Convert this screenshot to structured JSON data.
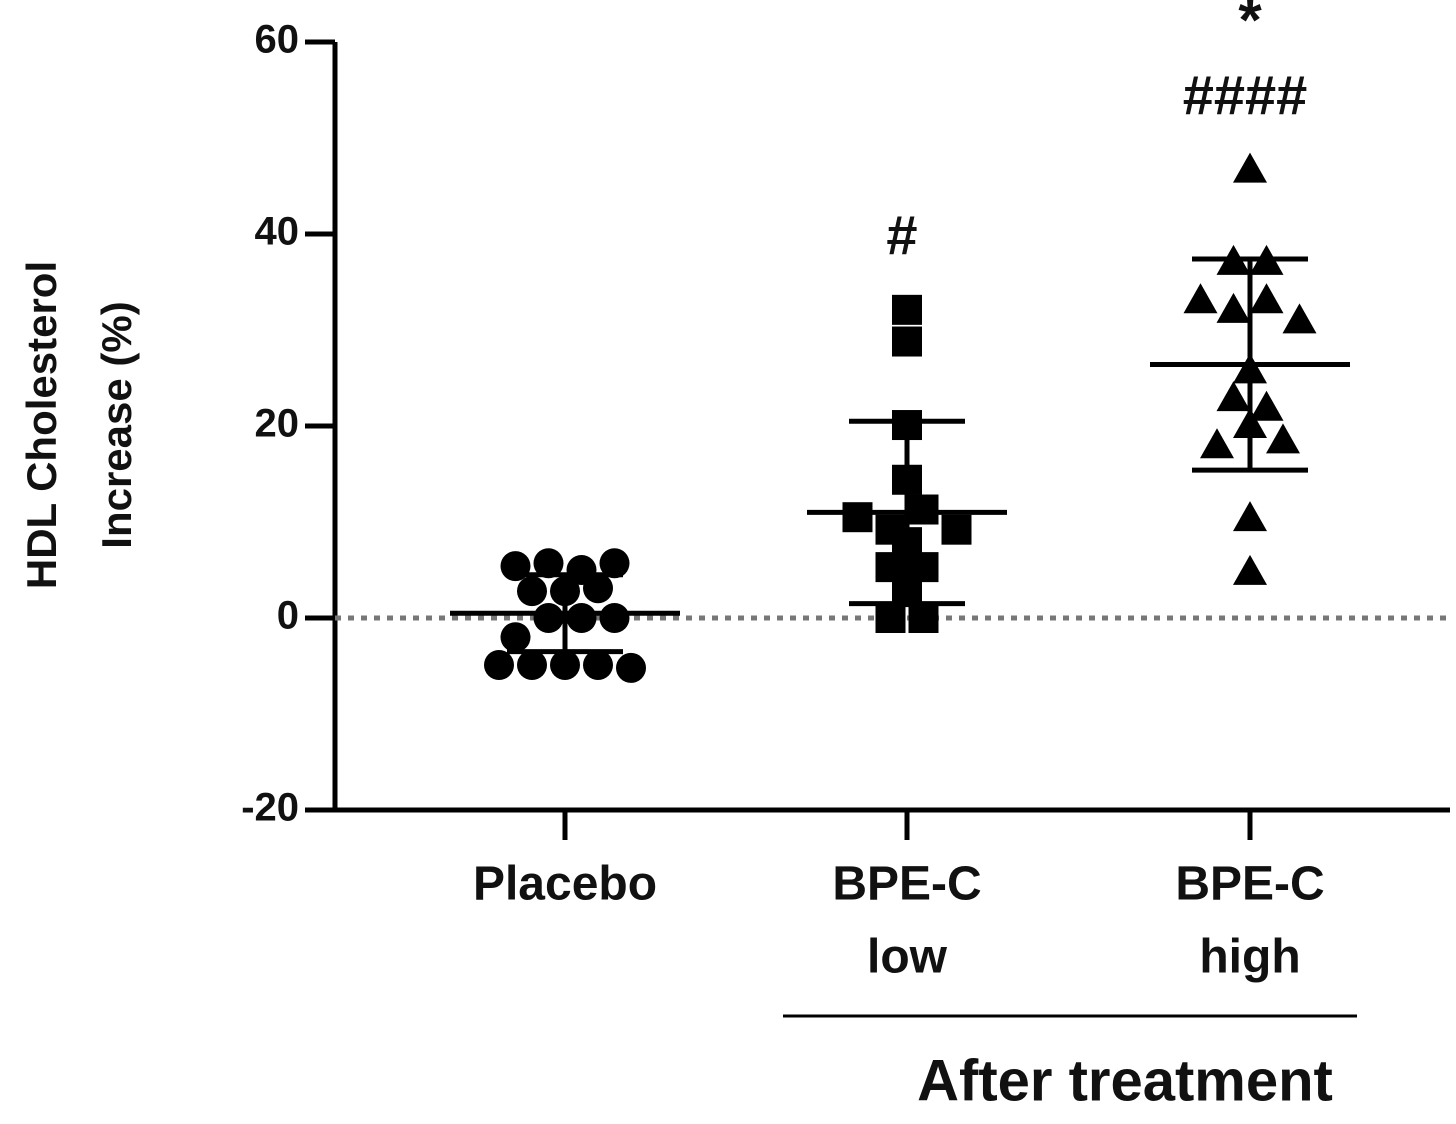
{
  "chart_data": {
    "type": "dotplot",
    "ylabel": [
      "HDL Cholesterol",
      "Increase (%)"
    ],
    "xlabel": "After treatment",
    "ylim": [
      -20,
      60
    ],
    "yticks": [
      -20,
      0,
      20,
      40,
      60
    ],
    "reference_line": 0,
    "series": [
      {
        "name": [
          "Placebo"
        ],
        "color": "#000000",
        "marker": "circle",
        "values": [
          5.4,
          2.8,
          2.8,
          5.7,
          5.0,
          5.7,
          3.1,
          -2.0,
          0,
          0,
          0,
          -4.9,
          -4.9,
          -4.9,
          -4.9,
          -5.2
        ],
        "mean": 0.5,
        "sd": 4
      },
      {
        "name": [
          "BPE-C",
          "low"
        ],
        "color": "#000000",
        "marker": "square",
        "values": [
          32.1,
          28.8,
          20.1,
          14.4,
          10.5,
          7.9,
          9.2,
          11.3,
          9.2,
          5.3,
          5.3,
          2.7,
          0,
          0
        ],
        "mean": 11,
        "sd": 9.5,
        "annotation": "#"
      },
      {
        "name": [
          "BPE-C",
          "high"
        ],
        "color": "#000000",
        "marker": "triangle",
        "values": [
          46.7,
          37.1,
          37.1,
          33.1,
          32.1,
          33.1,
          31.0,
          25.8,
          22.9,
          21.9,
          18.0,
          20.1,
          18.5,
          10.4,
          4.8
        ],
        "mean": 26.4,
        "sd": 11,
        "annotation": "####",
        "annotation2": "*"
      }
    ]
  }
}
